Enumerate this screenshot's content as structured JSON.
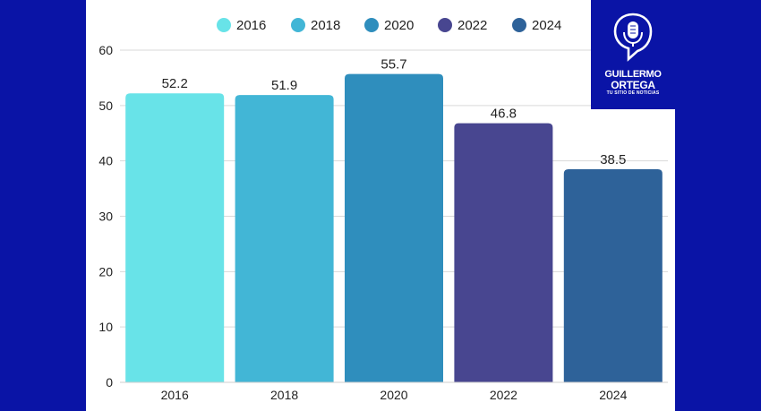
{
  "chart_data": {
    "type": "bar",
    "categories": [
      "2016",
      "2018",
      "2020",
      "2022",
      "2024"
    ],
    "values": [
      52.2,
      51.9,
      55.7,
      46.8,
      38.5
    ],
    "value_labels": [
      "52.2",
      "51.9",
      "55.7",
      "46.8",
      "38.5"
    ],
    "colors": [
      "#68e3e8",
      "#42b6d6",
      "#2f8ebd",
      "#484690",
      "#2e6299"
    ],
    "title": "",
    "xlabel": "",
    "ylabel": "",
    "ylim": [
      0,
      60
    ],
    "yticks": [
      "0",
      "10",
      "20",
      "30",
      "40",
      "50",
      "60"
    ],
    "grid": true,
    "legend": {
      "position": "top",
      "entries": [
        "2016",
        "2018",
        "2020",
        "2022",
        "2024"
      ]
    }
  },
  "logo": {
    "line1": "GUILLERMO",
    "line2": "ORTEGA",
    "tagline": "TU SITIO DE NOTICIAS",
    "icon": "microphone-icon",
    "color": "#ffffff"
  },
  "background_color": "#0a14a6"
}
